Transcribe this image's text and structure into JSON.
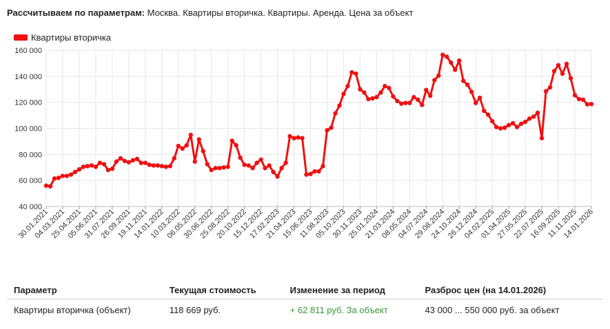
{
  "header": {
    "label": "Рассчитываем по параметрам:",
    "text": "Москва. Квартиры вторичка. Квартиры. Аренда. Цена за объект"
  },
  "table": {
    "headers": [
      "Параметр",
      "Текущая стоимость",
      "Изменение за период",
      "Разброс цен (на 14.01.2026)"
    ],
    "row": {
      "param": "Квартиры вторичка (объект)",
      "current": "118 669 руб.",
      "change": "+ 62 811 руб. За объект",
      "range": "43 000 ... 550 000 руб. за объект"
    }
  },
  "colors": {
    "series": "#ee1111",
    "grid": "#e6e6e6",
    "change_positive": "#339933"
  },
  "chart_data": {
    "type": "line",
    "ylim": [
      40000,
      160000
    ],
    "yticks": [
      "40 000",
      "60 000",
      "80 000",
      "100 000",
      "120 000",
      "140 000",
      "160 000"
    ],
    "ytick_values": [
      40000,
      60000,
      80000,
      100000,
      120000,
      140000,
      160000
    ],
    "xticks": [
      "30.01.2021",
      "04.03.2021",
      "25.04.2021",
      "05.06.2021",
      "31.07.2021",
      "26.09.2021",
      "19.11.2021",
      "14.01.2022",
      "10.03.2022",
      "06.05.2022",
      "30.06.2022",
      "25.08.2022",
      "20.10.2022",
      "15.12.2022",
      "17.02.2023",
      "21.04.2023",
      "15.06.2023",
      "11.08.2023",
      "05.10.2023",
      "30.11.2023",
      "25.01.2024",
      "21.03.2024",
      "08.05.2024",
      "04.07.2024",
      "29.08.2024",
      "24.10.2024",
      "26.12.2024",
      "04.02.2025",
      "01.04.2025",
      "27.05.2025",
      "22.07.2025",
      "16.09.2025",
      "11.11.2025",
      "14.01.2026"
    ],
    "grid": true,
    "legend_position": "top-left",
    "series": [
      {
        "name": "Квартиры вторичка",
        "values": [
          56000,
          55500,
          61500,
          62000,
          63500,
          63500,
          64500,
          66500,
          68500,
          70500,
          71000,
          71500,
          70500,
          73500,
          72500,
          68000,
          69000,
          74500,
          77000,
          75000,
          74000,
          75500,
          76500,
          73500,
          73500,
          72000,
          71500,
          71500,
          71000,
          70500,
          71000,
          77000,
          86500,
          84500,
          87000,
          95000,
          74500,
          91500,
          82500,
          72500,
          68000,
          69500,
          69500,
          70000,
          70500,
          90500,
          87000,
          77500,
          72000,
          71500,
          69500,
          73500,
          76000,
          69500,
          71500,
          66500,
          63000,
          69500,
          73500,
          94000,
          92500,
          93000,
          92500,
          64500,
          65000,
          67000,
          67000,
          71000,
          98500,
          100500,
          111500,
          117500,
          126500,
          132500,
          143000,
          142000,
          130000,
          127500,
          122500,
          123000,
          124000,
          127500,
          132500,
          131000,
          124500,
          121000,
          119000,
          119500,
          119500,
          124000,
          122000,
          118000,
          129500,
          125000,
          137000,
          140500,
          156500,
          155000,
          150500,
          145000,
          152000,
          136500,
          133500,
          128000,
          119500,
          123500,
          113500,
          110500,
          105500,
          101000,
          100000,
          100500,
          102500,
          104000,
          101000,
          103500,
          105000,
          107500,
          109000,
          112000,
          92500,
          128500,
          131500,
          144000,
          148500,
          142000,
          149500,
          138500,
          125500,
          122500,
          122000,
          118500,
          118669
        ]
      }
    ]
  }
}
